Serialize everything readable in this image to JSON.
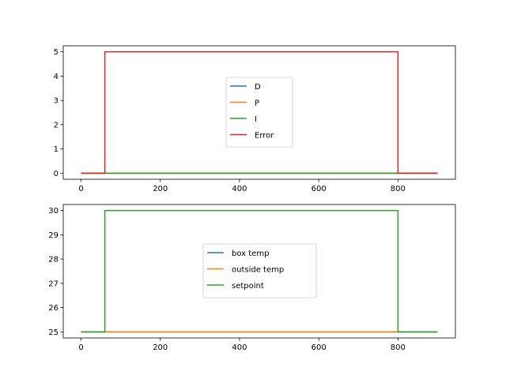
{
  "chart_data": [
    {
      "type": "line",
      "title": "",
      "xlabel": "",
      "ylabel": "",
      "xlim": [
        -45,
        945
      ],
      "ylim": [
        -0.25,
        5.25
      ],
      "xticks": [
        0,
        200,
        400,
        600,
        800
      ],
      "yticks": [
        0,
        1,
        2,
        3,
        4,
        5
      ],
      "grid": false,
      "legend_position": "center",
      "series": [
        {
          "name": "D",
          "color": "#1f77b4",
          "x": [
            0,
            60,
            60,
            800,
            800,
            900
          ],
          "y": [
            0,
            0,
            0,
            0,
            0,
            0
          ]
        },
        {
          "name": "P",
          "color": "#ff7f0e",
          "x": [
            0,
            60,
            60,
            800,
            800,
            900
          ],
          "y": [
            0,
            0,
            0,
            0,
            0,
            0
          ]
        },
        {
          "name": "I",
          "color": "#2ca02c",
          "x": [
            0,
            60,
            60,
            800,
            800,
            900
          ],
          "y": [
            0,
            0,
            0,
            0,
            0,
            0
          ]
        },
        {
          "name": "Error",
          "color": "#d62728",
          "x": [
            0,
            60,
            60,
            800,
            800,
            900
          ],
          "y": [
            0,
            0,
            5,
            5,
            0,
            0
          ]
        }
      ]
    },
    {
      "type": "line",
      "title": "",
      "xlabel": "",
      "ylabel": "",
      "xlim": [
        -45,
        945
      ],
      "ylim": [
        24.75,
        30.25
      ],
      "xticks": [
        0,
        200,
        400,
        600,
        800
      ],
      "yticks": [
        25,
        26,
        27,
        28,
        29,
        30
      ],
      "grid": false,
      "legend_position": "center",
      "series": [
        {
          "name": "box temp",
          "color": "#1f77b4",
          "x": [
            0,
            60,
            60,
            800,
            800,
            900
          ],
          "y": [
            25,
            25,
            25,
            25,
            25,
            25
          ]
        },
        {
          "name": "outside temp",
          "color": "#ff7f0e",
          "x": [
            0,
            60,
            60,
            800,
            800,
            900
          ],
          "y": [
            25,
            25,
            25,
            25,
            25,
            25
          ]
        },
        {
          "name": "setpoint",
          "color": "#2ca02c",
          "x": [
            0,
            60,
            60,
            800,
            800,
            900
          ],
          "y": [
            25,
            25,
            30,
            30,
            25,
            25
          ]
        }
      ]
    }
  ]
}
